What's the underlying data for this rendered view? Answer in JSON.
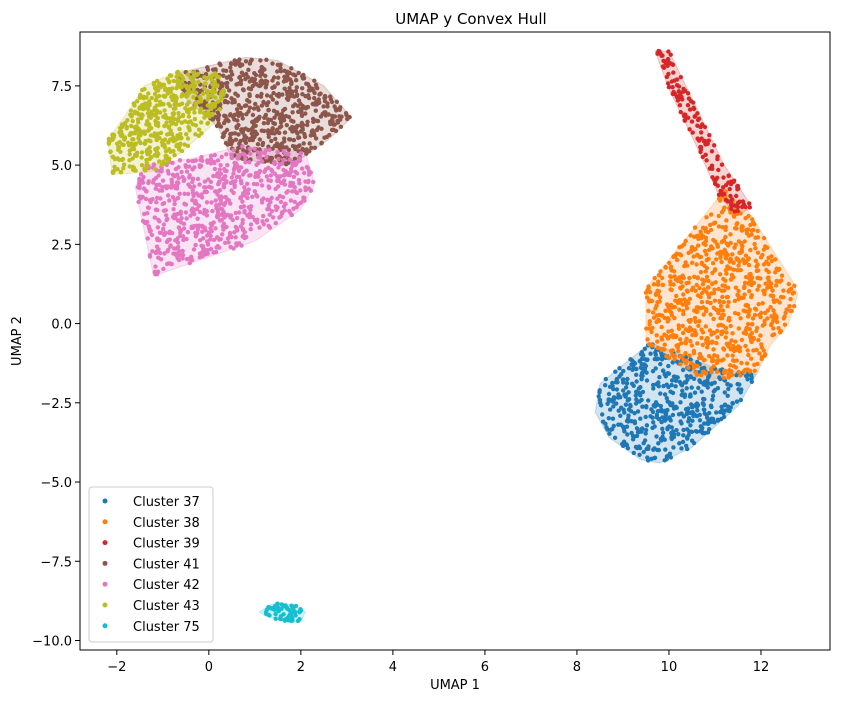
{
  "chart_data": {
    "type": "scatter",
    "title": "UMAP y Convex Hull",
    "xlabel": "UMAP 1",
    "ylabel": "UMAP 2",
    "xlim": [
      -2.8,
      13.5
    ],
    "ylim": [
      -10.3,
      9.2
    ],
    "xticks": [
      -2,
      0,
      2,
      4,
      6,
      8,
      10,
      12
    ],
    "yticks": [
      -10.0,
      -7.5,
      -5.0,
      -2.5,
      0.0,
      2.5,
      5.0,
      7.5
    ],
    "xtick_labels": [
      "−2",
      "0",
      "2",
      "4",
      "6",
      "8",
      "10",
      "12"
    ],
    "ytick_labels": [
      "−10.0",
      "−7.5",
      "−5.0",
      "−2.5",
      "0.0",
      "2.5",
      "5.0",
      "7.5"
    ],
    "grid": false,
    "legend_position": "lower-left",
    "series": [
      {
        "name": "Cluster 37",
        "color": "#1f77b4",
        "hull": [
          [
            8.4,
            -2.8
          ],
          [
            8.5,
            -1.9
          ],
          [
            9.6,
            -0.6
          ],
          [
            11.0,
            -1.4
          ],
          [
            11.9,
            -1.6
          ],
          [
            11.5,
            -2.6
          ],
          [
            10.5,
            -3.9
          ],
          [
            9.8,
            -4.4
          ],
          [
            9.4,
            -4.3
          ],
          [
            8.7,
            -3.6
          ]
        ],
        "points": 520
      },
      {
        "name": "Cluster 38",
        "color": "#ff7f0e",
        "hull": [
          [
            9.5,
            1.1
          ],
          [
            11.2,
            4.2
          ],
          [
            11.7,
            3.6
          ],
          [
            12.7,
            1.3
          ],
          [
            12.8,
            0.9
          ],
          [
            12.6,
            0.0
          ],
          [
            12.2,
            -0.7
          ],
          [
            11.9,
            -1.6
          ],
          [
            10.7,
            -1.8
          ],
          [
            9.5,
            -0.6
          ]
        ],
        "points": 760
      },
      {
        "name": "Cluster 39",
        "color": "#d62728",
        "hull": [
          [
            9.7,
            8.6
          ],
          [
            10.0,
            8.6
          ],
          [
            10.6,
            6.8
          ],
          [
            11.2,
            5.0
          ],
          [
            11.8,
            3.7
          ],
          [
            11.5,
            3.4
          ],
          [
            11.1,
            4.0
          ],
          [
            10.6,
            5.6
          ],
          [
            10.0,
            7.4
          ]
        ],
        "points": 150
      },
      {
        "name": "Cluster 41",
        "color": "#8c564b",
        "hull": [
          [
            -0.7,
            7.9
          ],
          [
            -0.1,
            8.1
          ],
          [
            0.8,
            8.4
          ],
          [
            1.5,
            8.3
          ],
          [
            2.5,
            7.5
          ],
          [
            3.1,
            6.5
          ],
          [
            2.6,
            5.8
          ],
          [
            1.8,
            5.0
          ],
          [
            0.5,
            5.2
          ],
          [
            0.2,
            6.2
          ],
          [
            -0.5,
            7.1
          ]
        ],
        "points": 640
      },
      {
        "name": "Cluster 42",
        "color": "#e377c2",
        "hull": [
          [
            -1.6,
            4.3
          ],
          [
            -1.2,
            1.5
          ],
          [
            -0.6,
            1.8
          ],
          [
            1.0,
            2.6
          ],
          [
            2.0,
            3.6
          ],
          [
            2.3,
            4.4
          ],
          [
            2.1,
            5.4
          ],
          [
            0.7,
            5.6
          ],
          [
            -0.4,
            5.2
          ],
          [
            -1.4,
            5.0
          ]
        ],
        "points": 680
      },
      {
        "name": "Cluster 43",
        "color": "#bcbd22",
        "hull": [
          [
            -2.2,
            5.8
          ],
          [
            -1.8,
            6.6
          ],
          [
            -1.4,
            7.5
          ],
          [
            -0.6,
            8.0
          ],
          [
            0.2,
            7.9
          ],
          [
            0.4,
            7.2
          ],
          [
            0.1,
            6.3
          ],
          [
            -0.6,
            5.4
          ],
          [
            -1.2,
            4.8
          ],
          [
            -2.1,
            4.7
          ]
        ],
        "points": 480
      },
      {
        "name": "Cluster 75",
        "color": "#17becf",
        "hull": [
          [
            1.1,
            -9.1
          ],
          [
            1.3,
            -8.9
          ],
          [
            1.5,
            -8.8
          ],
          [
            1.9,
            -8.9
          ],
          [
            2.1,
            -9.1
          ],
          [
            2.0,
            -9.4
          ],
          [
            1.7,
            -9.4
          ],
          [
            1.4,
            -9.3
          ],
          [
            1.2,
            -9.2
          ]
        ],
        "points": 60
      }
    ]
  }
}
